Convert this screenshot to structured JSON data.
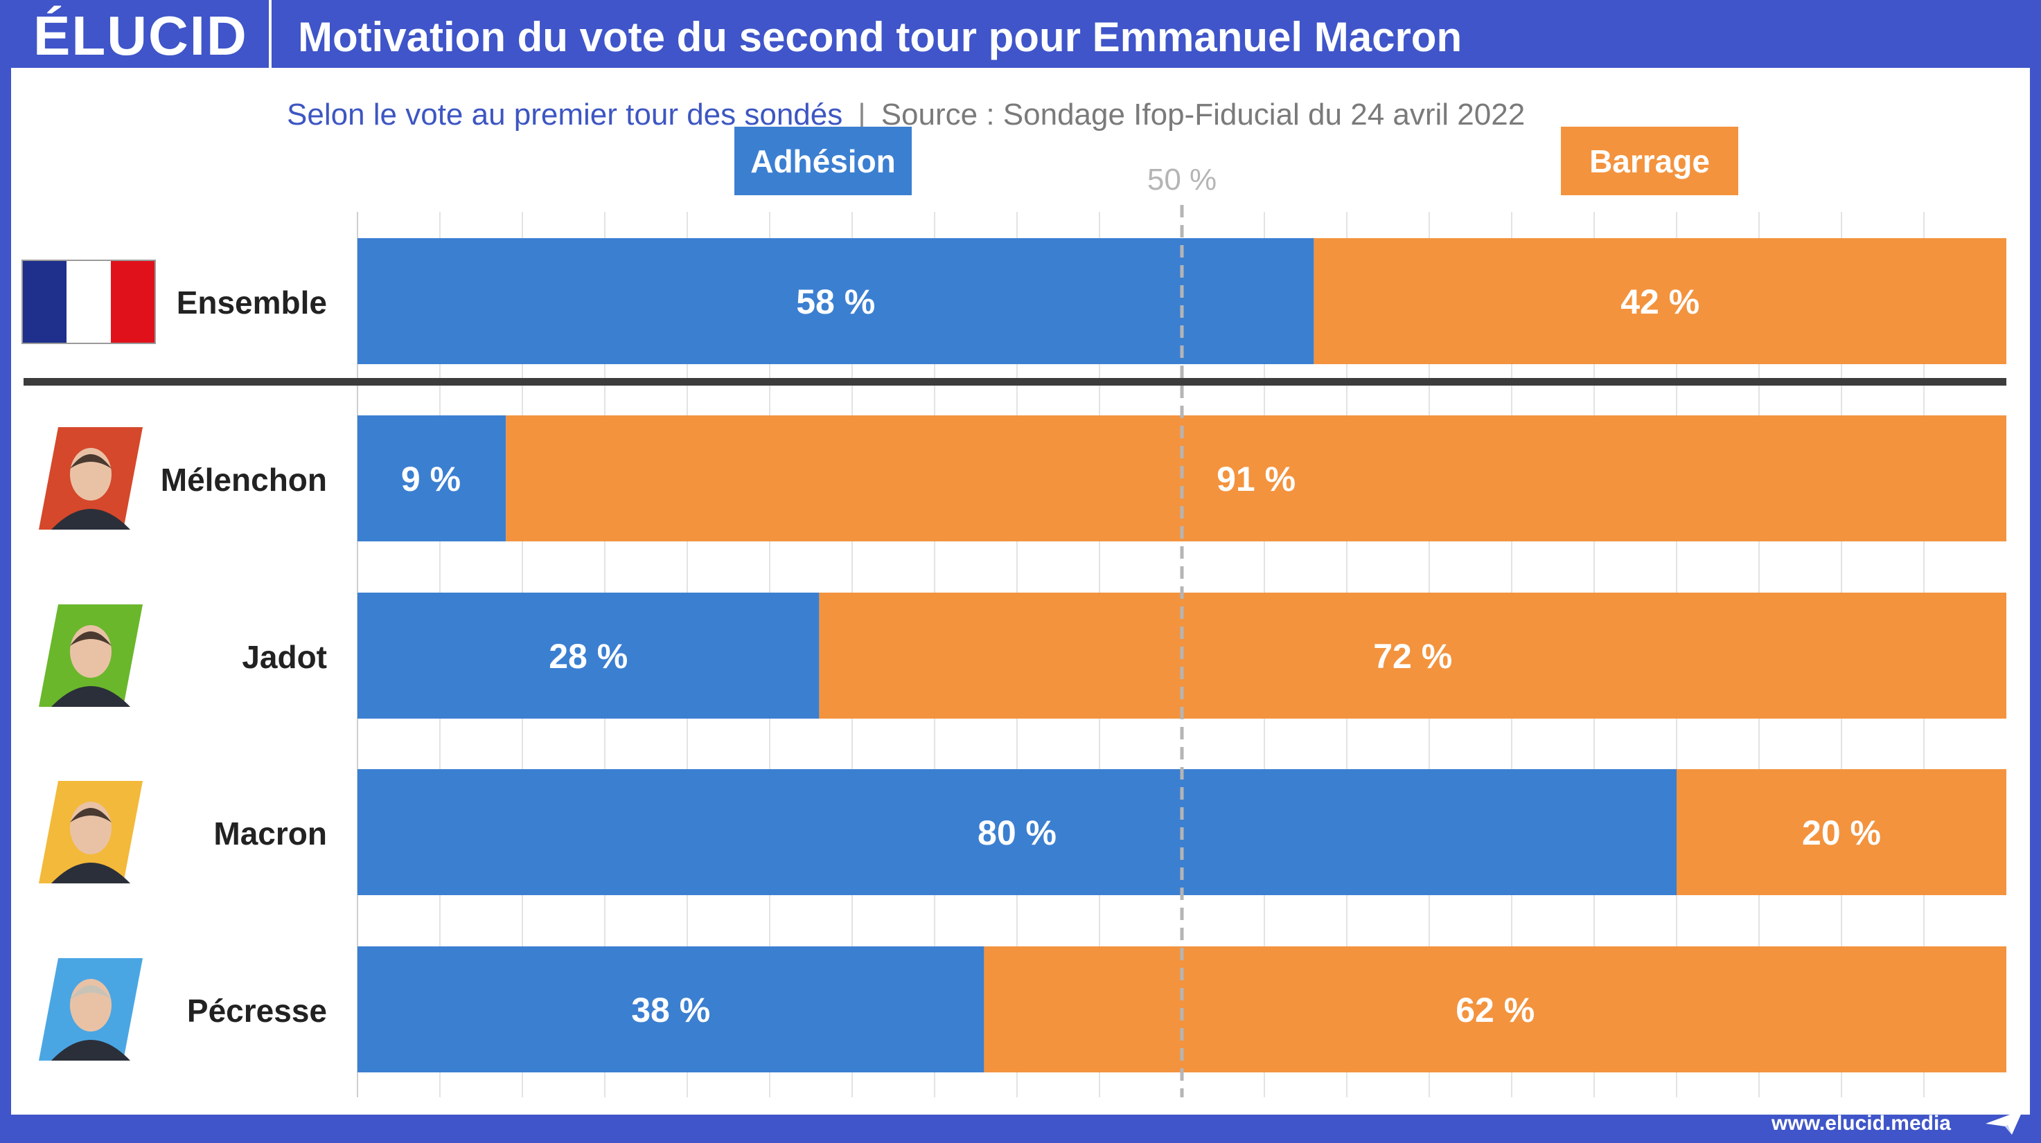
{
  "header": {
    "logo": "ÉLUCID",
    "title": "Motivation du vote du second tour pour Emmanuel Macron"
  },
  "subtitle": {
    "selection": "Selon le vote au premier tour des sondés",
    "separator": "|",
    "source": "Source : Sondage Ifop-Fiducial du 24 avril 2022"
  },
  "footer": {
    "url": "www.elucid.media",
    "icon": "paper-plane-icon"
  },
  "colors": {
    "brand": "#3f55c9",
    "adhesion": "#3b7fd1",
    "barrage": "#f3933e",
    "divider": "#3c3c3c",
    "midline": "#b5b5b5"
  },
  "chart_data": {
    "type": "bar",
    "orientation": "horizontal",
    "stacked": true,
    "categories": [
      "Ensemble",
      "Mélenchon",
      "Jadot",
      "Macron",
      "Pécresse"
    ],
    "series": [
      {
        "name": "Adhésion",
        "values": [
          58,
          9,
          28,
          80,
          38
        ]
      },
      {
        "name": "Barrage",
        "values": [
          42,
          91,
          72,
          20,
          62
        ]
      }
    ],
    "data_labels": {
      "Adhésion": [
        "58 %",
        "9 %",
        "28 %",
        "80 %",
        "38 %"
      ],
      "Barrage": [
        "42 %",
        "91 %",
        "72 %",
        "20 %",
        "62 %"
      ]
    },
    "xlim": [
      0,
      100
    ],
    "reference_line": {
      "value": 50,
      "label": "50 %",
      "style": "dashed"
    },
    "grid": true,
    "legend": "top",
    "row_icons": [
      "french-flag-icon",
      "melenchon-portrait-icon",
      "jadot-portrait-icon",
      "macron-portrait-icon",
      "pecresse-portrait-icon"
    ]
  }
}
